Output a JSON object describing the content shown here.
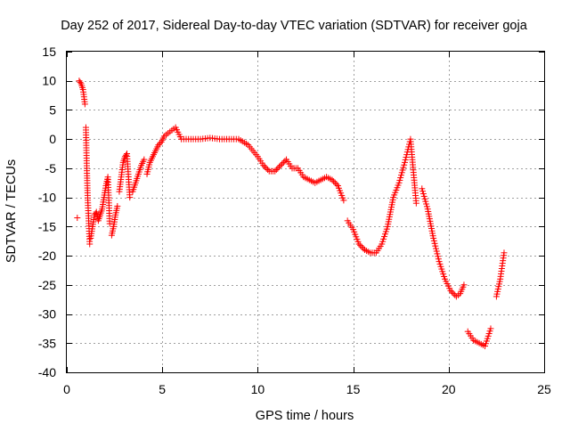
{
  "chart_data": {
    "type": "scatter",
    "title": "Day 252 of 2017, Sidereal Day-to-day VTEC variation (SDTVAR) for receiver goja",
    "xlabel": "GPS time / hours",
    "ylabel": "SDTVAR / TECUs",
    "xlim": [
      0,
      25
    ],
    "ylim": [
      -40,
      15
    ],
    "xticks": [
      0,
      5,
      10,
      15,
      20,
      25
    ],
    "yticks": [
      15,
      10,
      5,
      0,
      -5,
      -10,
      -15,
      -20,
      -25,
      -30,
      -35,
      -40
    ],
    "xtick_labels": [
      "0",
      "5",
      "10",
      "15",
      "20",
      "25"
    ],
    "ytick_labels": [
      "15",
      "10",
      "5",
      "0",
      "-5",
      "-10",
      "-15",
      "-20",
      "-25",
      "-30",
      "-35",
      "-40"
    ],
    "grid": true,
    "marker": "+",
    "color": "#ff0000",
    "series": [
      {
        "name": "SDTVAR",
        "x": [
          0.55,
          0.65,
          0.75,
          0.85,
          0.95,
          1.0,
          1.05,
          1.1,
          1.2,
          1.25,
          1.35,
          1.45,
          1.55,
          1.65,
          1.75,
          1.85,
          1.95,
          2.05,
          2.15,
          2.25,
          2.35,
          2.45,
          2.55,
          2.65,
          2.75,
          2.85,
          2.95,
          3.05,
          3.15,
          3.3,
          3.45,
          3.6,
          3.75,
          3.9,
          4.05,
          4.2,
          4.35,
          4.5,
          4.65,
          4.8,
          4.95,
          5.1,
          5.3,
          5.5,
          5.7,
          6.0,
          6.5,
          7.0,
          7.5,
          8.0,
          8.5,
          9.0,
          9.5,
          10.0,
          10.3,
          10.6,
          10.9,
          11.2,
          11.5,
          11.8,
          12.1,
          12.4,
          12.7,
          13.0,
          13.3,
          13.6,
          13.9,
          14.2,
          14.5,
          14.7,
          15.0,
          15.3,
          15.6,
          15.9,
          16.2,
          16.5,
          16.8,
          17.1,
          17.4,
          17.7,
          18.0,
          18.3,
          18.6,
          18.9,
          19.2,
          19.5,
          19.8,
          20.1,
          20.4,
          20.6,
          20.8,
          21.0,
          21.3,
          21.6,
          21.9,
          22.2,
          22.5,
          22.7,
          22.9
        ],
        "y": [
          -13.5,
          10.0,
          9.5,
          8.5,
          6.0,
          2.0,
          -5.0,
          -10.5,
          -18.0,
          -17.0,
          -15.0,
          -13.0,
          -12.5,
          -14.0,
          -13.0,
          -12.0,
          -10.0,
          -8.0,
          -6.5,
          -14.5,
          -16.5,
          -15.0,
          -13.0,
          -11.5,
          -9.0,
          -6.5,
          -4.0,
          -3.0,
          -2.5,
          -10.0,
          -9.0,
          -7.5,
          -6.0,
          -4.5,
          -3.5,
          -6.0,
          -4.0,
          -3.0,
          -2.0,
          -1.0,
          -0.5,
          0.5,
          1.0,
          1.5,
          2.0,
          0.0,
          0.0,
          0.0,
          0.2,
          0.0,
          0.0,
          0.0,
          -1.0,
          -3.0,
          -4.5,
          -5.5,
          -5.5,
          -4.5,
          -3.5,
          -5.0,
          -5.0,
          -6.5,
          -7.0,
          -7.5,
          -7.0,
          -6.5,
          -7.0,
          -8.0,
          -10.5,
          -14.0,
          -15.5,
          -18.0,
          -19.0,
          -19.5,
          -19.5,
          -18.0,
          -15.0,
          -10.0,
          -7.5,
          -4.0,
          0.0,
          -11.0,
          -8.5,
          -12.0,
          -17.0,
          -21.0,
          -24.0,
          -26.0,
          -27.0,
          -26.5,
          -25.0,
          -33.0,
          -34.5,
          -35.0,
          -35.5,
          -32.5,
          -27.0,
          -24.0,
          -19.5
        ]
      }
    ]
  }
}
